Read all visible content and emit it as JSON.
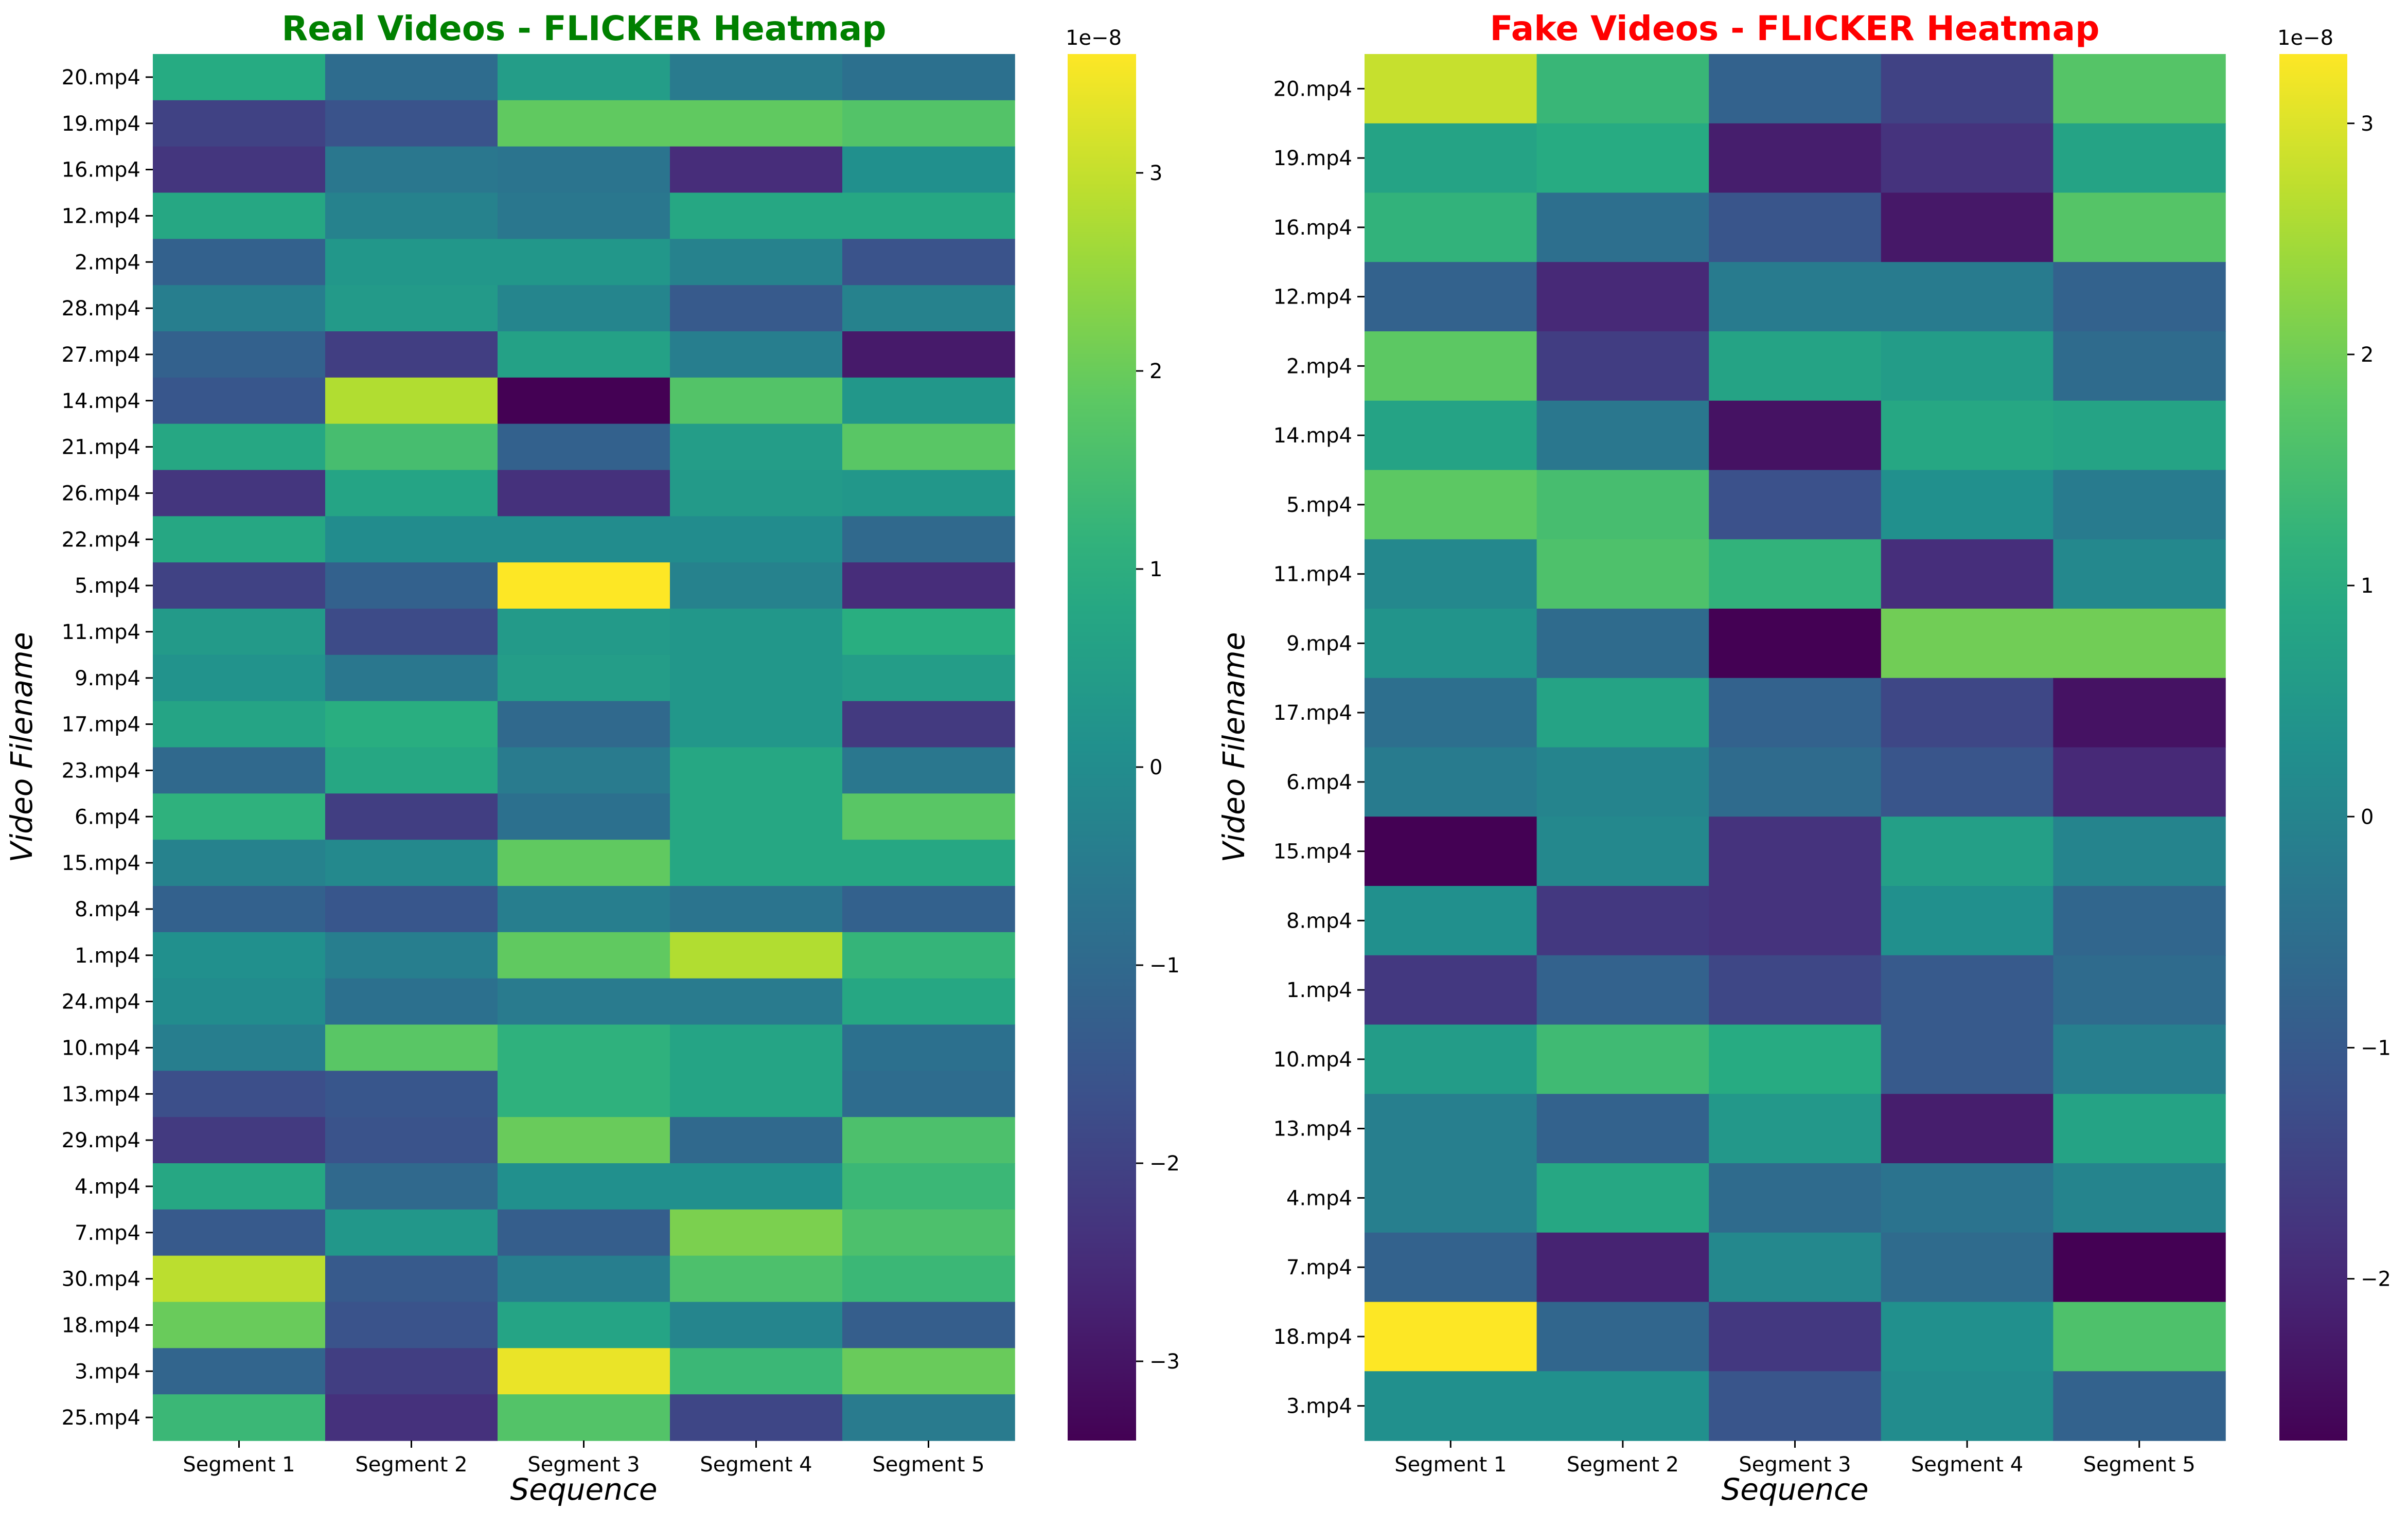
{
  "chart_data": [
    {
      "type": "heatmap",
      "title": "Real Videos - FLICKER Heatmap",
      "title_color": "#008000",
      "xlabel": "Sequence",
      "ylabel": "Video Filename",
      "x_categories": [
        "Segment 1",
        "Segment 2",
        "Segment 3",
        "Segment 4",
        "Segment 5"
      ],
      "y_categories": [
        "20.mp4",
        "19.mp4",
        "16.mp4",
        "12.mp4",
        "2.mp4",
        "28.mp4",
        "27.mp4",
        "14.mp4",
        "21.mp4",
        "26.mp4",
        "22.mp4",
        "5.mp4",
        "11.mp4",
        "9.mp4",
        "17.mp4",
        "23.mp4",
        "6.mp4",
        "15.mp4",
        "8.mp4",
        "1.mp4",
        "24.mp4",
        "10.mp4",
        "13.mp4",
        "29.mp4",
        "4.mp4",
        "7.mp4",
        "30.mp4",
        "18.mp4",
        "3.mp4",
        "25.mp4"
      ],
      "values": [
        [
          0.9,
          -0.9,
          0.5,
          -0.5,
          -0.8
        ],
        [
          -2.0,
          -1.6,
          1.9,
          1.9,
          1.7
        ],
        [
          -2.3,
          -0.6,
          -0.7,
          -2.5,
          0.1
        ],
        [
          0.8,
          -0.3,
          -0.6,
          0.8,
          0.8
        ],
        [
          -1.2,
          0.3,
          0.3,
          -0.3,
          -1.6
        ],
        [
          -0.4,
          0.4,
          -0.2,
          -1.4,
          -0.3
        ],
        [
          -1.2,
          -2.1,
          0.6,
          -0.4,
          -2.9
        ],
        [
          -1.5,
          2.8,
          -3.4,
          1.7,
          0.3
        ],
        [
          0.8,
          1.5,
          -1.2,
          0.5,
          1.8
        ],
        [
          -2.3,
          0.7,
          -2.4,
          0.4,
          0.3
        ],
        [
          0.8,
          0.0,
          0.0,
          0.0,
          -1.0
        ],
        [
          -2.0,
          -1.2,
          3.6,
          -0.3,
          -2.5
        ],
        [
          0.4,
          -1.8,
          0.4,
          0.3,
          1.0
        ],
        [
          0.2,
          -0.6,
          0.5,
          0.3,
          0.5
        ],
        [
          0.7,
          1.0,
          -1.0,
          0.3,
          -2.2
        ],
        [
          -1.0,
          0.8,
          -0.5,
          0.8,
          -0.6
        ],
        [
          1.1,
          -2.1,
          -0.8,
          0.8,
          1.8
        ],
        [
          -0.3,
          -0.1,
          1.9,
          0.8,
          0.8
        ],
        [
          -1.2,
          -1.5,
          -0.4,
          -0.7,
          -1.2
        ],
        [
          0.1,
          -0.4,
          1.9,
          2.8,
          1.2
        ],
        [
          0.0,
          -0.8,
          -0.5,
          -0.5,
          0.8
        ],
        [
          -0.4,
          1.8,
          1.1,
          0.7,
          -0.8
        ],
        [
          -1.7,
          -1.5,
          1.1,
          0.7,
          -0.9
        ],
        [
          -2.2,
          -1.6,
          2.0,
          -1.0,
          1.6
        ],
        [
          0.8,
          -1.0,
          0.1,
          0.1,
          1.3
        ],
        [
          -1.4,
          0.3,
          -1.3,
          2.2,
          1.6
        ],
        [
          2.9,
          -1.4,
          -0.4,
          1.6,
          1.3
        ],
        [
          2.0,
          -1.6,
          0.7,
          -0.2,
          -1.3
        ],
        [
          -1.1,
          -2.1,
          3.4,
          1.3,
          2.0
        ],
        [
          1.3,
          -2.4,
          1.7,
          -1.9,
          -0.5
        ]
      ],
      "colorbar": {
        "min": -3.4,
        "max": 3.6,
        "ticks": [
          "3",
          "2",
          "1",
          "0",
          "−1",
          "−2",
          "−3"
        ],
        "tick_values": [
          3,
          2,
          1,
          0,
          -1,
          -2,
          -3
        ],
        "exponent_label": "1e−8"
      }
    },
    {
      "type": "heatmap",
      "title": "Fake Videos - FLICKER Heatmap",
      "title_color": "#ff0000",
      "xlabel": "Sequence",
      "ylabel": "Video Filename",
      "x_categories": [
        "Segment 1",
        "Segment 2",
        "Segment 3",
        "Segment 4",
        "Segment 5"
      ],
      "y_categories": [
        "20.mp4",
        "19.mp4",
        "16.mp4",
        "12.mp4",
        "2.mp4",
        "14.mp4",
        "5.mp4",
        "11.mp4",
        "9.mp4",
        "17.mp4",
        "6.mp4",
        "15.mp4",
        "8.mp4",
        "1.mp4",
        "10.mp4",
        "13.mp4",
        "4.mp4",
        "7.mp4",
        "18.mp4",
        "3.mp4"
      ],
      "values": [
        [
          2.8,
          1.3,
          -0.8,
          -1.5,
          1.7
        ],
        [
          0.8,
          1.0,
          -2.2,
          -1.8,
          0.8
        ],
        [
          1.2,
          -0.5,
          -1.1,
          -2.3,
          1.7
        ],
        [
          -0.8,
          -2.0,
          -0.2,
          -0.2,
          -0.8
        ],
        [
          1.8,
          -1.6,
          0.8,
          0.6,
          -0.6
        ],
        [
          0.8,
          -0.3,
          -2.4,
          0.9,
          0.8
        ],
        [
          1.8,
          1.5,
          -1.2,
          0.3,
          -0.2
        ],
        [
          0.1,
          1.6,
          1.2,
          -1.9,
          0.1
        ],
        [
          0.4,
          -0.6,
          -2.7,
          2.0,
          2.0
        ],
        [
          -0.5,
          0.8,
          -0.8,
          -1.4,
          -2.4
        ],
        [
          -0.2,
          0.0,
          -0.6,
          -1.1,
          -2.0
        ],
        [
          -2.7,
          0.1,
          -1.8,
          0.7,
          0.0
        ],
        [
          0.3,
          -1.7,
          -1.8,
          0.3,
          -0.7
        ],
        [
          -1.7,
          -0.8,
          -1.4,
          -1.0,
          -0.6
        ],
        [
          0.6,
          1.4,
          1.0,
          -1.0,
          -0.1
        ],
        [
          -0.1,
          -0.8,
          0.5,
          -2.2,
          0.8
        ],
        [
          -0.1,
          0.9,
          -0.6,
          -0.4,
          0.0
        ],
        [
          -0.8,
          -2.1,
          0.1,
          -0.6,
          -2.7
        ],
        [
          3.3,
          -0.7,
          -1.7,
          0.3,
          1.6
        ],
        [
          0.3,
          0.3,
          -1.1,
          0.2,
          -0.8
        ]
      ],
      "colorbar": {
        "min": -2.7,
        "max": 3.3,
        "ticks": [
          "3",
          "2",
          "1",
          "0",
          "−1",
          "−2"
        ],
        "tick_values": [
          3,
          2,
          1,
          0,
          -1,
          -2
        ],
        "exponent_label": "1e−8"
      }
    }
  ]
}
